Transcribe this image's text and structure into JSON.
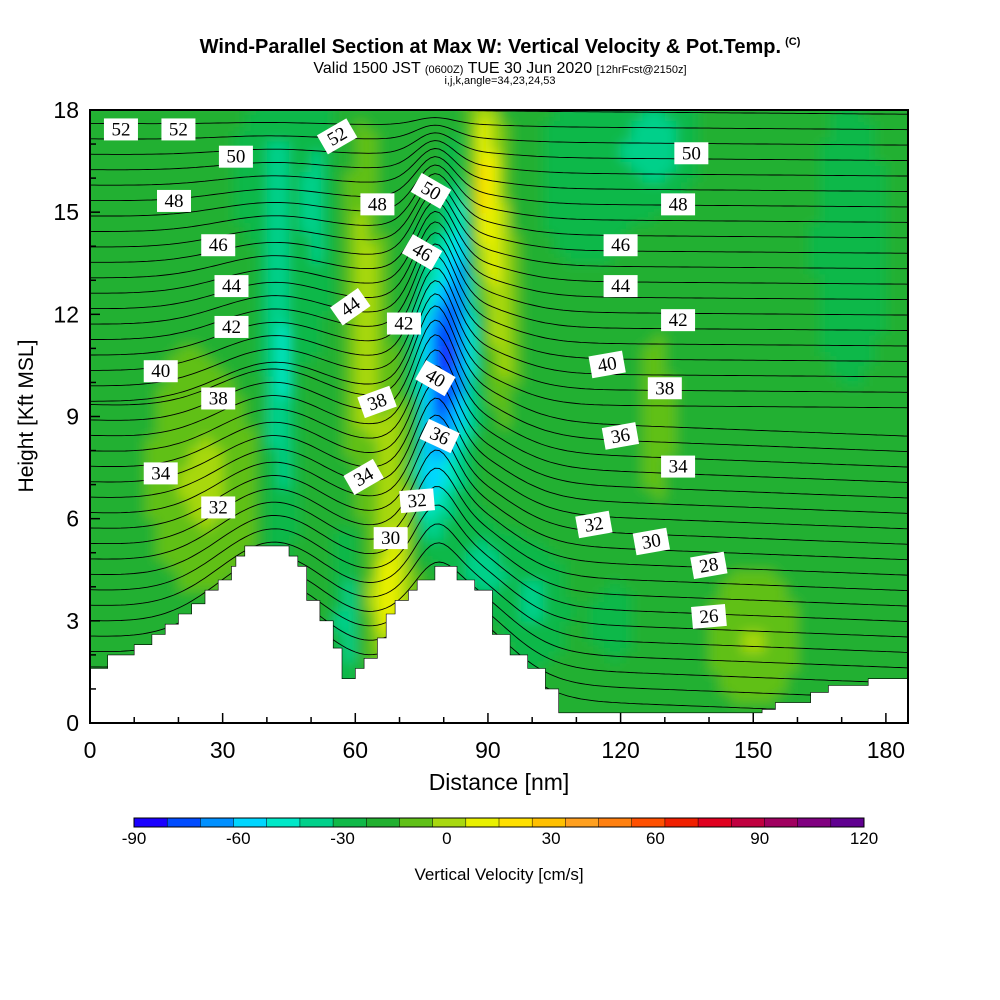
{
  "header": {
    "title": "Wind-Parallel Section at Max W: Vertical Velocity & Pot.Temp.",
    "copyright": "(C)",
    "valid_prefix": "Valid 1500 JST",
    "valid_utc": "(0600Z)",
    "valid_date": "TUE 30 Jun 2020",
    "forecast": "[12hrFcst@2150z]",
    "ijk": "i,j,k,angle=34,23,24,53"
  },
  "chart_data": {
    "type": "heatmap",
    "title": "Wind-Parallel Section at Max W: Vertical Velocity & Pot.Temp.",
    "xlabel": "Distance [nm]",
    "ylabel": "Height [Kft MSL]",
    "xlim": [
      0,
      185
    ],
    "ylim": [
      0,
      18
    ],
    "x_ticks": [
      0,
      30,
      60,
      90,
      120,
      150,
      180
    ],
    "y_ticks": [
      0,
      3,
      6,
      9,
      12,
      15,
      18
    ],
    "grid": false,
    "colorbar": {
      "label": "Vertical Velocity [cm/s]",
      "tick_labels": [
        -90,
        -60,
        -30,
        0,
        30,
        60,
        90,
        120
      ],
      "colors": [
        "#1a00ff",
        "#004cff",
        "#0090ff",
        "#00d6ff",
        "#00e8c8",
        "#00d08a",
        "#10b848",
        "#22b030",
        "#60c018",
        "#a8d810",
        "#e8f000",
        "#ffe000",
        "#ffc000",
        "#ffa020",
        "#ff8010",
        "#ff5000",
        "#f02000",
        "#e00020",
        "#c00040",
        "#a00060",
        "#800080",
        "#600090"
      ]
    },
    "terrain": [
      [
        0,
        1.6
      ],
      [
        4,
        1.6
      ],
      [
        4,
        2.0
      ],
      [
        10,
        2.0
      ],
      [
        10,
        2.3
      ],
      [
        14,
        2.3
      ],
      [
        14,
        2.6
      ],
      [
        17,
        2.6
      ],
      [
        17,
        2.9
      ],
      [
        20,
        2.9
      ],
      [
        20,
        3.2
      ],
      [
        23,
        3.2
      ],
      [
        23,
        3.5
      ],
      [
        26,
        3.5
      ],
      [
        26,
        3.9
      ],
      [
        29,
        3.9
      ],
      [
        29,
        4.2
      ],
      [
        32,
        4.2
      ],
      [
        32,
        4.6
      ],
      [
        33,
        4.6
      ],
      [
        33,
        4.9
      ],
      [
        35,
        4.9
      ],
      [
        35,
        5.2
      ],
      [
        45,
        5.2
      ],
      [
        45,
        4.9
      ],
      [
        47,
        4.9
      ],
      [
        47,
        4.6
      ],
      [
        49,
        4.6
      ],
      [
        49,
        3.6
      ],
      [
        52,
        3.6
      ],
      [
        52,
        3.0
      ],
      [
        55,
        3.0
      ],
      [
        55,
        2.2
      ],
      [
        57,
        2.2
      ],
      [
        57,
        1.3
      ],
      [
        60,
        1.3
      ],
      [
        60,
        1.6
      ],
      [
        62,
        1.6
      ],
      [
        62,
        1.9
      ],
      [
        65,
        1.9
      ],
      [
        65,
        2.5
      ],
      [
        67,
        2.5
      ],
      [
        67,
        3.2
      ],
      [
        69,
        3.2
      ],
      [
        69,
        3.6
      ],
      [
        72,
        3.6
      ],
      [
        72,
        3.9
      ],
      [
        74,
        3.9
      ],
      [
        74,
        4.2
      ],
      [
        78,
        4.2
      ],
      [
        78,
        4.6
      ],
      [
        83,
        4.6
      ],
      [
        83,
        4.2
      ],
      [
        87,
        4.2
      ],
      [
        87,
        3.9
      ],
      [
        91,
        3.9
      ],
      [
        91,
        2.6
      ],
      [
        95,
        2.6
      ],
      [
        95,
        2.0
      ],
      [
        99,
        2.0
      ],
      [
        99,
        1.6
      ],
      [
        103,
        1.6
      ],
      [
        103,
        1.0
      ],
      [
        106,
        1.0
      ],
      [
        106,
        0.3
      ],
      [
        152,
        0.3
      ],
      [
        152,
        0.4
      ],
      [
        155,
        0.4
      ],
      [
        155,
        0.6
      ],
      [
        163,
        0.6
      ],
      [
        163,
        0.9
      ],
      [
        167,
        0.9
      ],
      [
        167,
        1.1
      ],
      [
        176,
        1.1
      ],
      [
        176,
        1.3
      ],
      [
        185,
        1.3
      ]
    ],
    "contours": {
      "variable": "Potential Temperature",
      "labels": [
        {
          "v": "52",
          "x": 7,
          "y": 17.4,
          "rot": 0
        },
        {
          "v": "52",
          "x": 20,
          "y": 17.4,
          "rot": 0
        },
        {
          "v": "52",
          "x": 56,
          "y": 17.2,
          "rot": -30
        },
        {
          "v": "50",
          "x": 33,
          "y": 16.6,
          "rot": 0
        },
        {
          "v": "50",
          "x": 77,
          "y": 15.6,
          "rot": 30
        },
        {
          "v": "50",
          "x": 136,
          "y": 16.7,
          "rot": 0
        },
        {
          "v": "48",
          "x": 19,
          "y": 15.3,
          "rot": 0
        },
        {
          "v": "48",
          "x": 65,
          "y": 15.2,
          "rot": 0
        },
        {
          "v": "48",
          "x": 133,
          "y": 15.2,
          "rot": 0
        },
        {
          "v": "46",
          "x": 29,
          "y": 14.0,
          "rot": 0
        },
        {
          "v": "46",
          "x": 75,
          "y": 13.8,
          "rot": 30
        },
        {
          "v": "46",
          "x": 120,
          "y": 14.0,
          "rot": 0
        },
        {
          "v": "44",
          "x": 32,
          "y": 12.8,
          "rot": 0
        },
        {
          "v": "44",
          "x": 59,
          "y": 12.2,
          "rot": -35
        },
        {
          "v": "44",
          "x": 120,
          "y": 12.8,
          "rot": 0
        },
        {
          "v": "42",
          "x": 32,
          "y": 11.6,
          "rot": 0
        },
        {
          "v": "42",
          "x": 71,
          "y": 11.7,
          "rot": 0
        },
        {
          "v": "42",
          "x": 133,
          "y": 11.8,
          "rot": 0
        },
        {
          "v": "40",
          "x": 16,
          "y": 10.3,
          "rot": 0
        },
        {
          "v": "40",
          "x": 78,
          "y": 10.1,
          "rot": 30
        },
        {
          "v": "40",
          "x": 117,
          "y": 10.5,
          "rot": -10
        },
        {
          "v": "38",
          "x": 29,
          "y": 9.5,
          "rot": 0
        },
        {
          "v": "38",
          "x": 65,
          "y": 9.4,
          "rot": -20
        },
        {
          "v": "38",
          "x": 130,
          "y": 9.8,
          "rot": 0
        },
        {
          "v": "36",
          "x": 79,
          "y": 8.4,
          "rot": 25
        },
        {
          "v": "36",
          "x": 120,
          "y": 8.4,
          "rot": -10
        },
        {
          "v": "34",
          "x": 16,
          "y": 7.3,
          "rot": 0
        },
        {
          "v": "34",
          "x": 62,
          "y": 7.2,
          "rot": -30
        },
        {
          "v": "34",
          "x": 133,
          "y": 7.5,
          "rot": 0
        },
        {
          "v": "32",
          "x": 29,
          "y": 6.3,
          "rot": 0
        },
        {
          "v": "32",
          "x": 74,
          "y": 6.5,
          "rot": -5
        },
        {
          "v": "32",
          "x": 114,
          "y": 5.8,
          "rot": -10
        },
        {
          "v": "30",
          "x": 68,
          "y": 5.4,
          "rot": 0
        },
        {
          "v": "30",
          "x": 127,
          "y": 5.3,
          "rot": -10
        },
        {
          "v": "28",
          "x": 140,
          "y": 4.6,
          "rot": -10
        },
        {
          "v": "26",
          "x": 140,
          "y": 3.1,
          "rot": -5
        }
      ]
    }
  }
}
